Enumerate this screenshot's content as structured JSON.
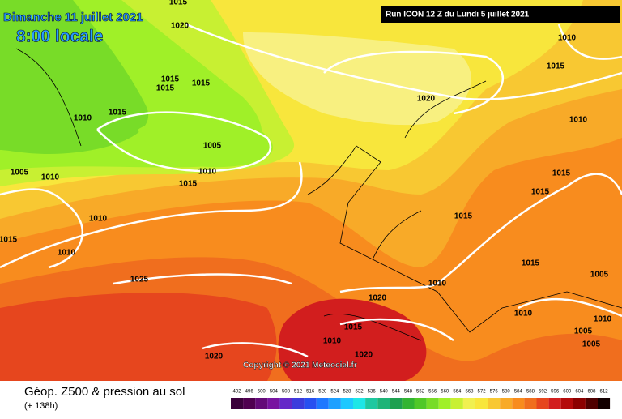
{
  "header": {
    "title": "Dimanche 11 juillet 2021",
    "subtitle": "8:00 locale",
    "run": "Run ICON 12 Z du Lundi 5 juillet 2021"
  },
  "footer": {
    "copyright": "Copyright © 2021 Meteociel.fr",
    "product": "Géop. Z500 & pression au sol",
    "lead": "(+ 138h)"
  },
  "scale": {
    "values": [
      492,
      496,
      500,
      504,
      508,
      512,
      516,
      520,
      524,
      528,
      532,
      536,
      540,
      544,
      548,
      552,
      556,
      560,
      564,
      568,
      572,
      576,
      580,
      584,
      588,
      592,
      596,
      600,
      604,
      608,
      612
    ],
    "colors": [
      "#3c003c",
      "#500050",
      "#640a78",
      "#7814a0",
      "#6428c8",
      "#3c3cdc",
      "#2850f0",
      "#1e78ff",
      "#1ea0ff",
      "#1ec8ff",
      "#1ee6e6",
      "#1ec8a0",
      "#1eb478",
      "#1ea050",
      "#32b432",
      "#50c828",
      "#78dc28",
      "#a0f028",
      "#c8f032",
      "#f0f050",
      "#f8e63c",
      "#f8c832",
      "#f8aa28",
      "#f88c1e",
      "#f06e1e",
      "#e6461e",
      "#d21e1e",
      "#b40a0a",
      "#8c0000",
      "#500000",
      "#140000"
    ]
  },
  "isobars": {
    "labels": [
      1015,
      1020,
      1015,
      1015,
      1015,
      1015,
      1010,
      1005,
      1010,
      1005,
      1010,
      1015,
      1010,
      1010,
      1025,
      1020,
      1010,
      1015,
      1010,
      1015,
      1015,
      1015,
      1015,
      1010,
      1005,
      1020,
      1010,
      1010,
      1015,
      1005,
      1010,
      1005,
      1020,
      1020,
      1015
    ]
  }
}
